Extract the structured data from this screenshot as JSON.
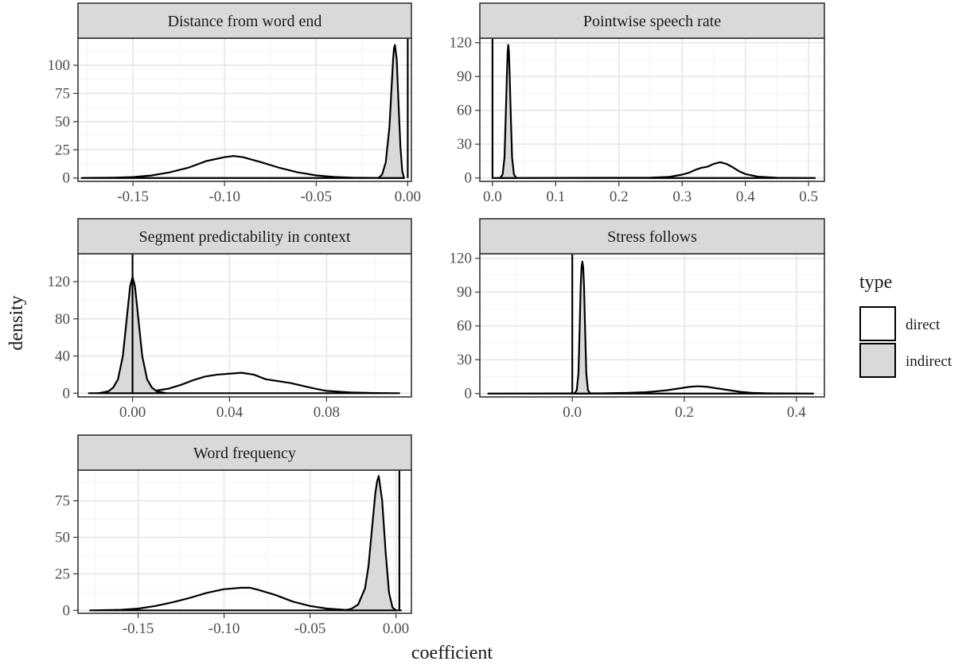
{
  "chart_data": {
    "type": "area",
    "chart_kind": "density facets (facet_wrap, 2 columns, free scales)",
    "xlabel": "coefficient",
    "ylabel": "density",
    "legend": {
      "title": "type",
      "position": "right",
      "entries": [
        {
          "label": "direct",
          "fill": "#ffffff"
        },
        {
          "label": "indirect",
          "fill": "#d9d9d9"
        }
      ]
    },
    "colors": {
      "direct": "#ffffff",
      "indirect": "#d9d9d9",
      "outline": "#000000",
      "strip": "#d9d9d9"
    },
    "grid": true,
    "panels": [
      {
        "title": "Distance from word end",
        "xlim": [
          -0.18,
          0.002
        ],
        "ylim": [
          -3,
          124
        ],
        "x_ticks": [
          -0.15,
          -0.1,
          -0.05,
          0.0
        ],
        "x_tick_labels": [
          "-0.15",
          "-0.10",
          "-0.05",
          "0.00"
        ],
        "y_ticks": [
          0,
          25,
          50,
          75,
          100
        ],
        "y_tick_labels": [
          "0",
          "25",
          "50",
          "75",
          "100"
        ],
        "series": [
          {
            "name": "direct",
            "fill": "#ffffff",
            "x": [
              -0.178,
              -0.16,
              -0.15,
              -0.14,
              -0.13,
              -0.12,
              -0.11,
              -0.1,
              -0.095,
              -0.09,
              -0.08,
              -0.07,
              -0.06,
              -0.05,
              -0.04,
              -0.03,
              -0.02,
              -0.01,
              -0.002
            ],
            "y": [
              0,
              0.3,
              0.8,
              2.2,
              5,
              9,
              15,
              18.5,
              19.5,
              18.5,
              14,
              9,
              5,
              2.3,
              0.9,
              0.3,
              0.1,
              0.03,
              0
            ]
          },
          {
            "name": "indirect",
            "fill": "#d9d9d9",
            "x": [
              -0.016,
              -0.014,
              -0.012,
              -0.01,
              -0.009,
              -0.008,
              -0.0075,
              -0.007,
              -0.006,
              -0.005,
              -0.004,
              -0.003,
              -0.002
            ],
            "y": [
              0,
              3,
              14,
              45,
              75,
              105,
              115,
              118,
              105,
              65,
              28,
              6,
              0
            ]
          },
          {
            "name": "vertical-line",
            "x": [
              0.0
            ],
            "y": [
              0
            ]
          }
        ]
      },
      {
        "title": "Pointwise speech rate",
        "xlim": [
          -0.02,
          0.525
        ],
        "ylim": [
          -3,
          124
        ],
        "x_ticks": [
          0.0,
          0.1,
          0.2,
          0.3,
          0.4,
          0.5
        ],
        "x_tick_labels": [
          "0.0",
          "0.1",
          "0.2",
          "0.3",
          "0.4",
          "0.5"
        ],
        "y_ticks": [
          0,
          30,
          60,
          90,
          120
        ],
        "y_tick_labels": [
          "0",
          "30",
          "60",
          "90",
          "120"
        ],
        "series": [
          {
            "name": "direct",
            "fill": "#ffffff",
            "x": [
              0.0,
              0.25,
              0.28,
              0.3,
              0.31,
              0.32,
              0.33,
              0.34,
              0.35,
              0.36,
              0.37,
              0.38,
              0.39,
              0.4,
              0.42,
              0.45,
              0.51
            ],
            "y": [
              0,
              0.3,
              1,
              3,
              4.5,
              7,
              9,
              10,
              12.5,
              14,
              12.5,
              9.5,
              6,
              3.5,
              1.2,
              0.2,
              0
            ]
          },
          {
            "name": "indirect",
            "fill": "#d9d9d9",
            "x": [
              0.012,
              0.016,
              0.019,
              0.021,
              0.023,
              0.024,
              0.025,
              0.026,
              0.027,
              0.029,
              0.031,
              0.034,
              0.038
            ],
            "y": [
              0,
              3,
              18,
              55,
              95,
              112,
              118,
              112,
              95,
              55,
              18,
              3,
              0
            ]
          },
          {
            "name": "vertical-line",
            "x": [
              0.0
            ],
            "y": [
              0
            ]
          }
        ]
      },
      {
        "title": "Segment predictability in context",
        "xlim": [
          -0.0225,
          0.115
        ],
        "ylim": [
          -4,
          150
        ],
        "x_ticks": [
          0.0,
          0.04,
          0.08
        ],
        "x_tick_labels": [
          "0.00",
          "0.04",
          "0.08"
        ],
        "y_ticks": [
          0,
          40,
          80,
          120
        ],
        "y_tick_labels": [
          "0",
          "40",
          "80",
          "120"
        ],
        "series": [
          {
            "name": "direct",
            "fill": "#ffffff",
            "x": [
              -0.018,
              -0.005,
              0.005,
              0.015,
              0.02,
              0.025,
              0.03,
              0.035,
              0.04,
              0.045,
              0.05,
              0.055,
              0.06,
              0.065,
              0.07,
              0.075,
              0.08,
              0.09,
              0.1,
              0.11
            ],
            "y": [
              0,
              0.2,
              1,
              5,
              9,
              14,
              18,
              20,
              21,
              22,
              20,
              15,
              13,
              11,
              8,
              5,
              2.5,
              0.8,
              0.2,
              0
            ]
          },
          {
            "name": "indirect",
            "fill": "#d9d9d9",
            "x": [
              -0.014,
              -0.01,
              -0.008,
              -0.006,
              -0.004,
              -0.002,
              -0.001,
              0.0,
              0.001,
              0.002,
              0.004,
              0.006,
              0.008,
              0.01,
              0.014
            ],
            "y": [
              0,
              2,
              6,
              15,
              40,
              90,
              115,
              125,
              115,
              90,
              40,
              15,
              6,
              2,
              0
            ]
          },
          {
            "name": "vertical-line",
            "x": [
              0.0
            ],
            "y": [
              0
            ]
          }
        ]
      },
      {
        "title": "Stress follows",
        "xlim": [
          -0.165,
          0.45
        ],
        "ylim": [
          -3,
          124
        ],
        "x_ticks": [
          0.0,
          0.2,
          0.4
        ],
        "x_tick_labels": [
          "0.0",
          "0.2",
          "0.4"
        ],
        "y_ticks": [
          0,
          30,
          60,
          90,
          120
        ],
        "y_tick_labels": [
          "0",
          "30",
          "60",
          "90",
          "120"
        ],
        "series": [
          {
            "name": "direct",
            "fill": "#ffffff",
            "x": [
              -0.15,
              0.05,
              0.1,
              0.13,
              0.15,
              0.17,
              0.19,
              0.21,
              0.225,
              0.24,
              0.26,
              0.28,
              0.3,
              0.32,
              0.35,
              0.43
            ],
            "y": [
              0,
              0.2,
              0.6,
              1.2,
              2,
              3,
              4.5,
              6,
              6.5,
              6,
              4.5,
              3,
              1.5,
              0.6,
              0.2,
              0
            ]
          },
          {
            "name": "indirect",
            "fill": "#d9d9d9",
            "x": [
              0.004,
              0.008,
              0.011,
              0.013,
              0.015,
              0.0165,
              0.018,
              0.0195,
              0.021,
              0.023,
              0.025,
              0.028,
              0.032
            ],
            "y": [
              0,
              3,
              18,
              55,
              95,
              112,
              117,
              112,
              95,
              55,
              18,
              3,
              0
            ]
          },
          {
            "name": "vertical-line",
            "x": [
              0.0
            ],
            "y": [
              0
            ]
          }
        ]
      },
      {
        "title": "Word frequency",
        "xlim": [
          -0.185,
          0.009
        ],
        "ylim": [
          -2,
          96
        ],
        "x_ticks": [
          -0.15,
          -0.1,
          -0.05,
          0.0
        ],
        "x_tick_labels": [
          "-0.15",
          "-0.10",
          "-0.05",
          "0.00"
        ],
        "y_ticks": [
          0,
          25,
          50,
          75
        ],
        "y_tick_labels": [
          "0",
          "25",
          "50",
          "75"
        ],
        "series": [
          {
            "name": "direct",
            "fill": "#ffffff",
            "x": [
              -0.178,
              -0.16,
              -0.15,
              -0.14,
              -0.13,
              -0.12,
              -0.11,
              -0.1,
              -0.09,
              -0.085,
              -0.08,
              -0.07,
              -0.06,
              -0.05,
              -0.04,
              -0.03,
              -0.02,
              -0.01,
              0.003
            ],
            "y": [
              0,
              0.4,
              1.2,
              3,
              5.5,
              8.5,
              12,
              14.5,
              15.5,
              15.5,
              14,
              10.5,
              6,
              3,
              1.2,
              0.4,
              0.1,
              0.03,
              0
            ]
          },
          {
            "name": "indirect",
            "fill": "#d9d9d9",
            "x": [
              -0.03,
              -0.026,
              -0.022,
              -0.018,
              -0.016,
              -0.014,
              -0.012,
              -0.011,
              -0.01,
              -0.008,
              -0.006,
              -0.004,
              -0.002,
              0.0
            ],
            "y": [
              0,
              1,
              4,
              15,
              30,
              55,
              80,
              88,
              92,
              75,
              40,
              12,
              2,
              0
            ]
          },
          {
            "name": "vertical-line",
            "x": [
              0.002
            ],
            "y": [
              0
            ]
          }
        ]
      }
    ]
  }
}
